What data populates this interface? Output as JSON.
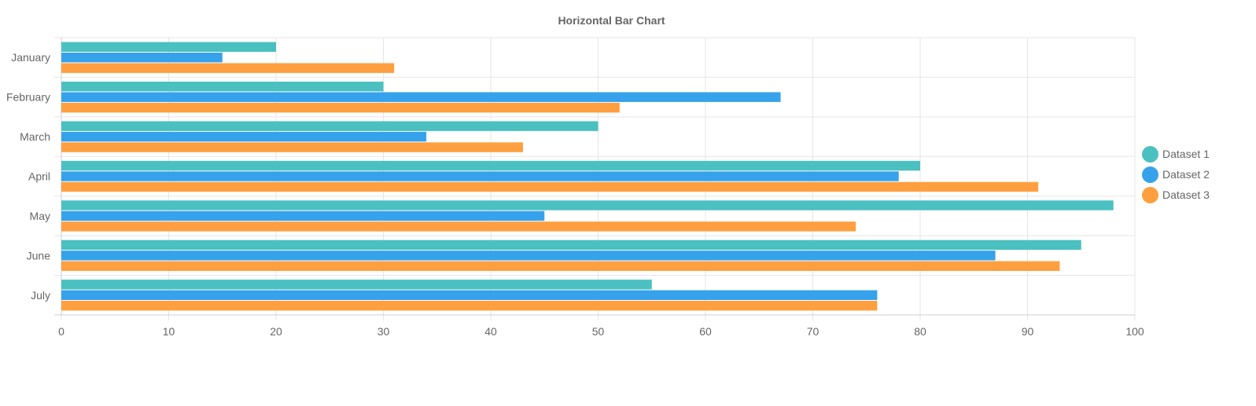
{
  "chart_data": {
    "type": "bar",
    "orientation": "horizontal",
    "title": "Horizontal Bar Chart",
    "xlabel": "",
    "ylabel": "",
    "xlim": [
      0,
      100
    ],
    "x_ticks": [
      "0",
      "10",
      "20",
      "30",
      "40",
      "50",
      "60",
      "70",
      "80",
      "90",
      "100"
    ],
    "grid": true,
    "legend_position": "right",
    "categories": [
      "January",
      "February",
      "March",
      "April",
      "May",
      "June",
      "July"
    ],
    "series": [
      {
        "name": "Dataset 1",
        "color": "#4bc0c0",
        "values": [
          20,
          30,
          50,
          80,
          98,
          95,
          55
        ]
      },
      {
        "name": "Dataset 2",
        "color": "#36a2eb",
        "values": [
          15,
          67,
          34,
          78,
          45,
          87,
          76
        ]
      },
      {
        "name": "Dataset 3",
        "color": "#ff9f40",
        "values": [
          31,
          52,
          43,
          91,
          74,
          93,
          76
        ]
      }
    ]
  }
}
